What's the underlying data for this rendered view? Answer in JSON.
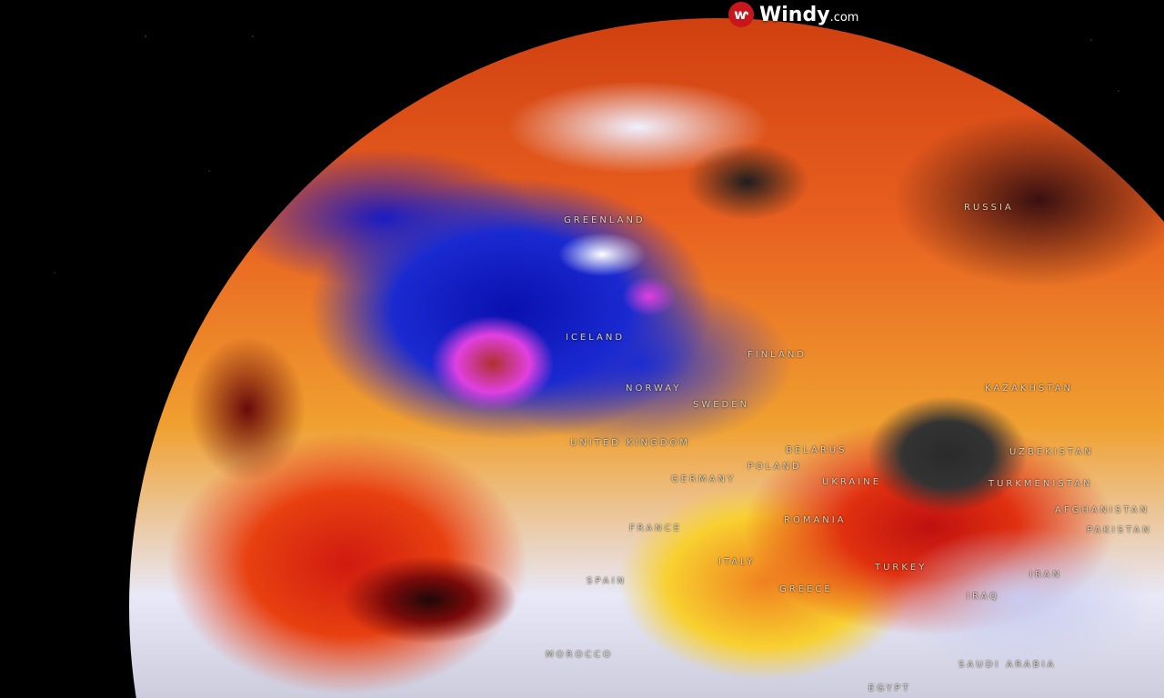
{
  "logo": {
    "name": "Windy",
    "suffix": ".com",
    "icon": "windy-logo-icon",
    "brand_color": "#c8161d"
  },
  "labels": [
    {
      "id": "greenland",
      "text": "GREENLAND"
    },
    {
      "id": "iceland",
      "text": "ICELAND"
    },
    {
      "id": "united-kingdom",
      "text": "UNITED KINGDOM"
    },
    {
      "id": "norway",
      "text": "NORWAY"
    },
    {
      "id": "sweden",
      "text": "SWEDEN"
    },
    {
      "id": "finland",
      "text": "FINLAND"
    },
    {
      "id": "russia",
      "text": "RUSSIA"
    },
    {
      "id": "kazakhstan",
      "text": "KAZAKHSTAN"
    },
    {
      "id": "uzbekistan",
      "text": "UZBEKISTAN"
    },
    {
      "id": "turkmenistan",
      "text": "TURKMENISTAN"
    },
    {
      "id": "afghanistan",
      "text": "AFGHANISTAN"
    },
    {
      "id": "pakistan",
      "text": "PAKISTAN"
    },
    {
      "id": "belarus",
      "text": "BELARUS"
    },
    {
      "id": "poland",
      "text": "POLAND"
    },
    {
      "id": "ukraine",
      "text": "UKRAINE"
    },
    {
      "id": "germany",
      "text": "GERMANY"
    },
    {
      "id": "france",
      "text": "FRANCE"
    },
    {
      "id": "romania",
      "text": "ROMANIA"
    },
    {
      "id": "spain",
      "text": "SPAIN"
    },
    {
      "id": "italy",
      "text": "ITALY"
    },
    {
      "id": "greece",
      "text": "GREECE"
    },
    {
      "id": "turkey",
      "text": "TURKEY"
    },
    {
      "id": "iraq",
      "text": "IRAQ"
    },
    {
      "id": "iran",
      "text": "IRAN"
    },
    {
      "id": "saudi-arabia",
      "text": "SAUDI ARABIA"
    },
    {
      "id": "egypt",
      "text": "EGYPT"
    },
    {
      "id": "morocco",
      "text": "MOROCCO"
    }
  ]
}
